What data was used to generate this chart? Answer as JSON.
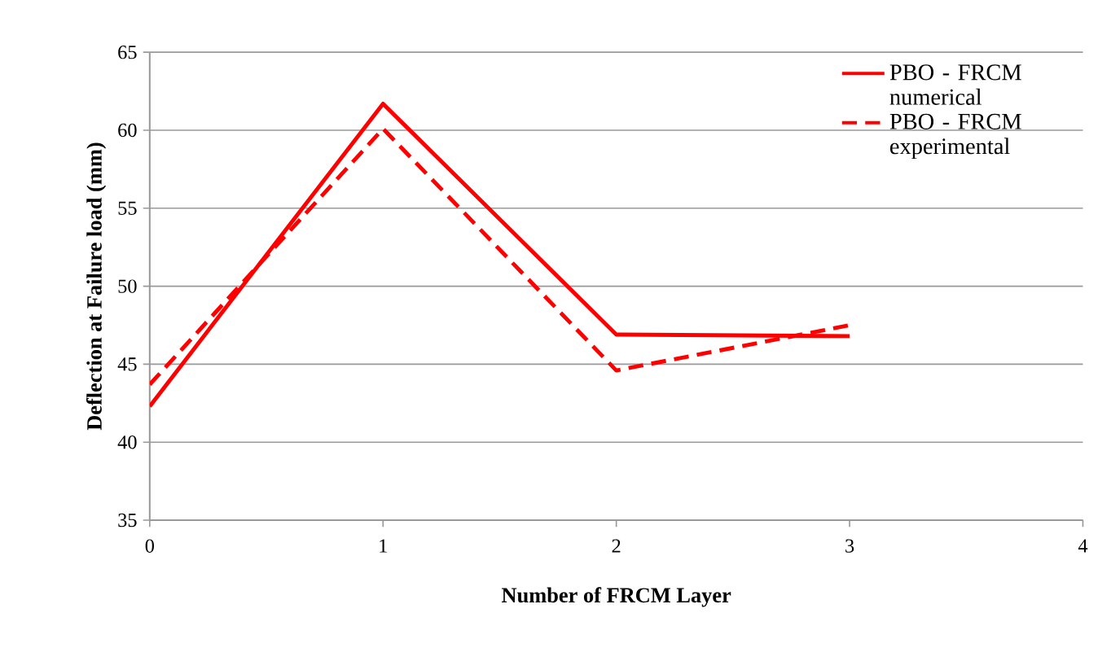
{
  "chart_data": {
    "type": "line",
    "xlabel": "Number of FRCM Layer",
    "ylabel": "Deflection at Failure load (mm)",
    "x": [
      0,
      1,
      2,
      3
    ],
    "series": [
      {
        "name": "PBO - FRCM numerical",
        "color": "#ff0000",
        "line_style": "solid",
        "values": [
          42.3,
          61.7,
          46.9,
          46.8
        ]
      },
      {
        "name": "PBO - FRCM experimental",
        "color": "#ff0000",
        "line_style": "dashed",
        "values": [
          43.7,
          60.1,
          44.6,
          47.5
        ]
      }
    ],
    "xlim": [
      0,
      4
    ],
    "xticks": [
      0,
      1,
      2,
      3,
      4
    ],
    "ylim": [
      35,
      65
    ],
    "yticks": [
      35,
      40,
      45,
      50,
      55,
      60,
      65
    ],
    "grid": "y",
    "legend": "top right",
    "marker": "none"
  }
}
